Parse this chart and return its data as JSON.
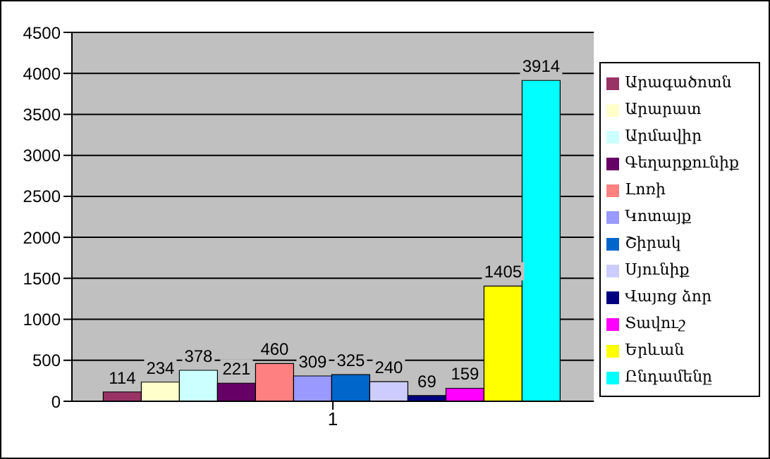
{
  "chart_data": {
    "type": "bar",
    "categories": [
      "1"
    ],
    "series": [
      {
        "name": "Արագածոտն",
        "color": "#993366",
        "values": [
          114
        ]
      },
      {
        "name": "Արարատ",
        "color": "#ffffcc",
        "values": [
          234
        ]
      },
      {
        "name": "Արմավիր",
        "color": "#ccffff",
        "values": [
          378
        ]
      },
      {
        "name": "Գեղարքունիք",
        "color": "#660066",
        "values": [
          221
        ]
      },
      {
        "name": "Լոռի",
        "color": "#ff8080",
        "values": [
          460
        ]
      },
      {
        "name": "Կոտայք",
        "color": "#9999ff",
        "values": [
          309
        ]
      },
      {
        "name": "Շիրակ",
        "color": "#0066cc",
        "values": [
          325
        ]
      },
      {
        "name": "Սյունիք",
        "color": "#ccccff",
        "values": [
          240
        ]
      },
      {
        "name": "Վայոց ձոր",
        "color": "#000080",
        "values": [
          69
        ]
      },
      {
        "name": "Տավուշ",
        "color": "#ff00ff",
        "values": [
          159
        ]
      },
      {
        "name": "Երևան",
        "color": "#ffff00",
        "values": [
          1405
        ]
      },
      {
        "name": "Ընդամենը",
        "color": "#00ffff",
        "values": [
          3914
        ]
      }
    ],
    "ylim": [
      0,
      4500
    ],
    "yticks": [
      0,
      500,
      1000,
      1500,
      2000,
      2500,
      3000,
      3500,
      4000,
      4500
    ],
    "grid": "y",
    "legend": "right",
    "data_labels": true
  }
}
